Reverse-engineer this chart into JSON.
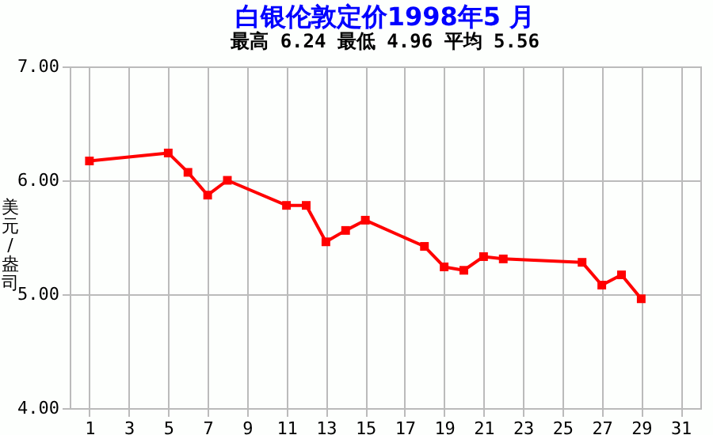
{
  "chart_data": {
    "type": "line",
    "title": "白银伦敦定价1998年5 月",
    "subtitle": "最高  6.24      最低  4.96      平均  5.56",
    "ylabel": "美元/盎司",
    "x": [
      1,
      5,
      6,
      7,
      8,
      11,
      12,
      13,
      14,
      15,
      18,
      19,
      20,
      21,
      22,
      26,
      27,
      28,
      29
    ],
    "series": [
      {
        "color": "#ff0000",
        "values": [
          6.17,
          6.24,
          6.07,
          5.87,
          6.0,
          5.78,
          5.78,
          5.46,
          5.56,
          5.65,
          5.42,
          5.24,
          5.21,
          5.33,
          5.31,
          5.28,
          5.08,
          5.17,
          4.96
        ]
      }
    ],
    "xlim": [
      0,
      32
    ],
    "xticks": [
      1,
      3,
      5,
      7,
      9,
      11,
      13,
      15,
      17,
      19,
      21,
      23,
      25,
      27,
      29,
      31
    ],
    "ylim": [
      4,
      7
    ],
    "yticks": [
      {
        "value": 4,
        "label": "4.00"
      },
      {
        "value": 5,
        "label": "5.00"
      },
      {
        "value": 6,
        "label": "6.00"
      },
      {
        "value": 7,
        "label": "7.00"
      }
    ],
    "grid": true,
    "marker": "square"
  }
}
